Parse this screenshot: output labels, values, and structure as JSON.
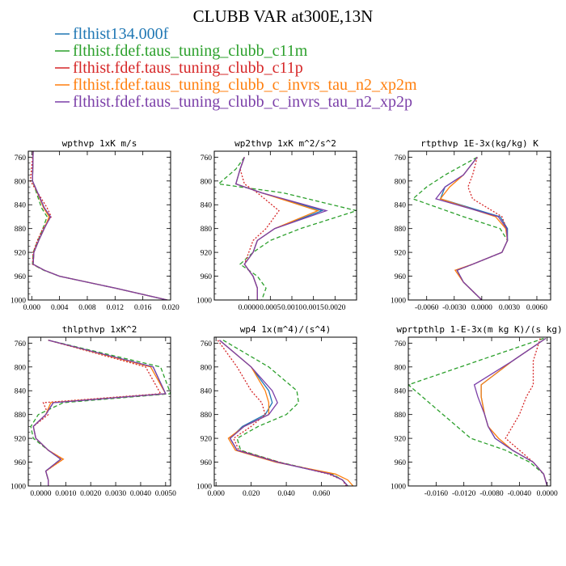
{
  "title": "CLUBB VAR at300E,13N",
  "colors": {
    "blue": "#1f77b4",
    "green": "#2ca02c",
    "red": "#d62728",
    "orange": "#ff7f0e",
    "purple": "#7b3fa8"
  },
  "chart_data": {
    "type": "line",
    "title": "CLUBB VAR at300E,13N",
    "legend": [
      {
        "name": "flthist134.000f",
        "color": "#1f77b4"
      },
      {
        "name": "flthist.fdef.taus_tuning_clubb_c11m",
        "color": "#2ca02c"
      },
      {
        "name": "flthist.fdef.taus_tuning_clubb_c11p",
        "color": "#d62728"
      },
      {
        "name": "flthist.fdef.taus_tuning_clubb_c_invrs_tau_n2_xp2m",
        "color": "#ff7f0e"
      },
      {
        "name": "flthist.fdef.taus_tuning_clubb_c_invrs_tau_n2_xp2p",
        "color": "#7b3fa8"
      }
    ],
    "yticks": [
      760,
      800,
      840,
      880,
      920,
      960,
      1000
    ],
    "ylim": [
      750,
      1000
    ],
    "panels": [
      {
        "name": "wpthvp",
        "title": "wpthvp   1xK m/s",
        "xlim": [
          -0.0005,
          0.02
        ],
        "xticks": [
          0,
          0.004,
          0.008,
          0.012,
          0.016,
          0.02
        ],
        "xticklabels": [
          "0.000",
          "0.004",
          "0.008",
          "0.012",
          "0.016",
          "0.020"
        ],
        "p": [
          750,
          800,
          845,
          860,
          880,
          900,
          920,
          940,
          950,
          960,
          980,
          1000
        ],
        "series": [
          [
            0.0002,
            0.0001,
            0.0018,
            0.0026,
            0.0018,
            0.001,
            0.0003,
            0.0002,
            0.0018,
            0.004,
            0.012,
            0.0195
          ],
          [
            0.0002,
            0.0001,
            0.0014,
            0.0022,
            0.0016,
            0.0009,
            0.0002,
            0.0001,
            0.0017,
            0.004,
            0.012,
            0.0195
          ],
          [
            0.0002,
            -0.0002,
            0.0022,
            0.0028,
            0.0016,
            0.0008,
            0.0002,
            0.0001,
            0.0018,
            0.004,
            0.012,
            0.0195
          ],
          [
            0.0002,
            0.0001,
            0.0017,
            0.0025,
            0.0018,
            0.001,
            0.0003,
            0.0002,
            0.0018,
            0.004,
            0.012,
            0.0195
          ],
          [
            0.0002,
            0.0001,
            0.0018,
            0.0027,
            0.0018,
            0.001,
            0.0003,
            0.0002,
            0.0018,
            0.004,
            0.012,
            0.0195
          ]
        ]
      },
      {
        "name": "wp2thvp",
        "title": "wp2thvp   1xK m^2/s^2",
        "xlim": [
          -0.0008,
          0.0025
        ],
        "xticks": [
          0,
          0.0005,
          0.001,
          0.0015,
          0.002
        ],
        "xticklabels": [
          "0.0000",
          "0.0005",
          "0.0010",
          "0.0015",
          "0.0020"
        ],
        "p": [
          760,
          780,
          805,
          820,
          850,
          880,
          900,
          920,
          940,
          960,
          980,
          1000
        ],
        "series": [
          [
            -0.0001,
            -0.0002,
            -0.0003,
            0.0003,
            0.0017,
            0.0006,
            0.0002,
            0.0001,
            -0.0001,
            0.0001,
            0.0002,
            0.0002
          ],
          [
            -0.0001,
            -0.0003,
            -0.0007,
            0.0008,
            0.0025,
            0.0012,
            0.0005,
            0.0001,
            -0.0002,
            0.0002,
            0.0004,
            0.0003
          ],
          [
            -0.0001,
            -0.0002,
            -0.0001,
            0.0002,
            0.0007,
            0.0004,
            0.0001,
            0.0,
            -0.0001,
            0.0001,
            0.0002,
            0.0002
          ],
          [
            -0.0001,
            -0.0002,
            -0.0003,
            0.0003,
            0.0016,
            0.0006,
            0.0002,
            0.0001,
            -0.0001,
            0.0001,
            0.0002,
            0.0002
          ],
          [
            -0.0001,
            -0.0002,
            -0.0003,
            0.0003,
            0.0018,
            0.0006,
            0.0002,
            0.0001,
            -0.0001,
            0.0001,
            0.0002,
            0.0002
          ]
        ]
      },
      {
        "name": "rtpthvp",
        "title": "rtpthvp   1E-3x(kg/kg) K",
        "xlim": [
          -0.008,
          0.0075
        ],
        "xticks": [
          -0.006,
          -0.003,
          0,
          0.003,
          0.006
        ],
        "xticklabels": [
          "-0.0060",
          "-0.0030",
          "0.0000",
          "0.0030",
          "0.0060"
        ],
        "p": [
          760,
          790,
          810,
          830,
          860,
          880,
          900,
          920,
          940,
          950,
          970,
          1000
        ],
        "series": [
          [
            -0.0005,
            -0.002,
            -0.004,
            -0.0045,
            0.002,
            0.0028,
            0.0028,
            0.0022,
            -0.001,
            -0.0027,
            -0.002,
            0.0
          ],
          [
            -0.0005,
            -0.004,
            -0.006,
            -0.0075,
            -0.002,
            0.002,
            0.0028,
            0.0022,
            -0.001,
            -0.0027,
            -0.002,
            0.0
          ],
          [
            -0.0005,
            -0.001,
            -0.0015,
            -0.001,
            0.0022,
            0.0027,
            0.0028,
            0.0022,
            -0.001,
            -0.0027,
            -0.002,
            0.0
          ],
          [
            -0.0005,
            -0.002,
            -0.0035,
            -0.0045,
            0.0015,
            0.0026,
            0.0028,
            0.0022,
            -0.001,
            -0.0029,
            -0.002,
            0.0
          ],
          [
            -0.0005,
            -0.002,
            -0.004,
            -0.005,
            0.0018,
            0.0027,
            0.0028,
            0.0022,
            -0.001,
            -0.0027,
            -0.002,
            0.0
          ]
        ]
      },
      {
        "name": "thlpthvp",
        "title": "thlpthvp   1xK^2",
        "xlim": [
          -0.0005,
          0.0052
        ],
        "xticks": [
          0,
          0.001,
          0.002,
          0.003,
          0.004,
          0.005
        ],
        "xticklabels": [
          "0.0000",
          "0.0010",
          "0.0020",
          "0.0030",
          "0.0040",
          "0.0050"
        ],
        "p": [
          755,
          800,
          845,
          860,
          880,
          900,
          920,
          940,
          955,
          975,
          990,
          1000
        ],
        "series": [
          [
            0.0003,
            0.0045,
            0.005,
            0.0005,
            0.0002,
            -0.0003,
            -0.0002,
            0.0003,
            0.0008,
            0.0002,
            0.0003,
            0.0003
          ],
          [
            0.0003,
            0.0048,
            0.0052,
            0.0009,
            -0.0001,
            -0.0004,
            -0.0003,
            0.0003,
            0.0008,
            0.0002,
            0.0003,
            0.0003
          ],
          [
            0.0003,
            0.0042,
            0.0048,
            0.0001,
            0.0003,
            -0.0003,
            -0.0002,
            0.0003,
            0.0009,
            0.0002,
            0.0003,
            0.0003
          ],
          [
            0.0003,
            0.0044,
            0.005,
            0.0004,
            0.0002,
            -0.0003,
            -0.0002,
            0.0003,
            0.0009,
            0.0002,
            0.0003,
            0.0003
          ],
          [
            0.0003,
            0.0045,
            0.005,
            0.0005,
            0.0002,
            -0.0003,
            -0.0002,
            0.0003,
            0.0008,
            0.0002,
            0.0003,
            0.0003
          ]
        ]
      },
      {
        "name": "wp4",
        "title": "wp4   1x(m^4)/(s^4)",
        "xlim": [
          -0.001,
          0.08
        ],
        "xticks": [
          0,
          0.02,
          0.04,
          0.06
        ],
        "xticklabels": [
          "0.000",
          "0.020",
          "0.040",
          "0.060"
        ],
        "p": [
          755,
          800,
          840,
          860,
          880,
          900,
          920,
          940,
          960,
          980,
          990,
          1000
        ],
        "series": [
          [
            0.002,
            0.02,
            0.03,
            0.032,
            0.028,
            0.015,
            0.008,
            0.012,
            0.035,
            0.065,
            0.072,
            0.075
          ],
          [
            0.004,
            0.03,
            0.046,
            0.047,
            0.04,
            0.024,
            0.012,
            0.014,
            0.036,
            0.066,
            0.072,
            0.075
          ],
          [
            0.001,
            0.012,
            0.02,
            0.026,
            0.028,
            0.02,
            0.01,
            0.013,
            0.036,
            0.064,
            0.072,
            0.074
          ],
          [
            0.002,
            0.02,
            0.028,
            0.03,
            0.03,
            0.016,
            0.007,
            0.011,
            0.034,
            0.068,
            0.075,
            0.078
          ],
          [
            0.002,
            0.02,
            0.032,
            0.035,
            0.03,
            0.016,
            0.008,
            0.012,
            0.035,
            0.065,
            0.072,
            0.075
          ]
        ]
      },
      {
        "name": "wprtpthlp",
        "title": "wprtpthlp   1-E-3x(m kg K)/(s kg)",
        "xlim": [
          -0.02,
          0.0005
        ],
        "xticks": [
          -0.016,
          -0.012,
          -0.008,
          -0.004,
          0
        ],
        "xticklabels": [
          "-0.0160",
          "-0.0120",
          "-0.0080",
          "-0.0040",
          "0.0000"
        ],
        "p": [
          752,
          790,
          830,
          850,
          880,
          900,
          920,
          940,
          960,
          980,
          1000
        ],
        "series": [
          [
            -0.0002,
            -0.005,
            -0.0095,
            -0.0095,
            -0.009,
            -0.0085,
            -0.0075,
            -0.005,
            -0.002,
            -0.0005,
            0.0
          ],
          [
            -0.0005,
            -0.01,
            -0.02,
            -0.018,
            -0.015,
            -0.013,
            -0.011,
            -0.006,
            -0.0025,
            -0.0005,
            0.0
          ],
          [
            -0.001,
            -0.002,
            -0.002,
            -0.003,
            -0.004,
            -0.005,
            -0.006,
            -0.004,
            -0.002,
            -0.0005,
            0.0
          ],
          [
            -0.0002,
            -0.005,
            -0.0095,
            -0.0095,
            -0.009,
            -0.0085,
            -0.007,
            -0.005,
            -0.002,
            -0.0005,
            0.0
          ],
          [
            -0.0002,
            -0.005,
            -0.0105,
            -0.01,
            -0.009,
            -0.0085,
            -0.0075,
            -0.005,
            -0.002,
            -0.0005,
            0.0
          ]
        ]
      }
    ]
  }
}
